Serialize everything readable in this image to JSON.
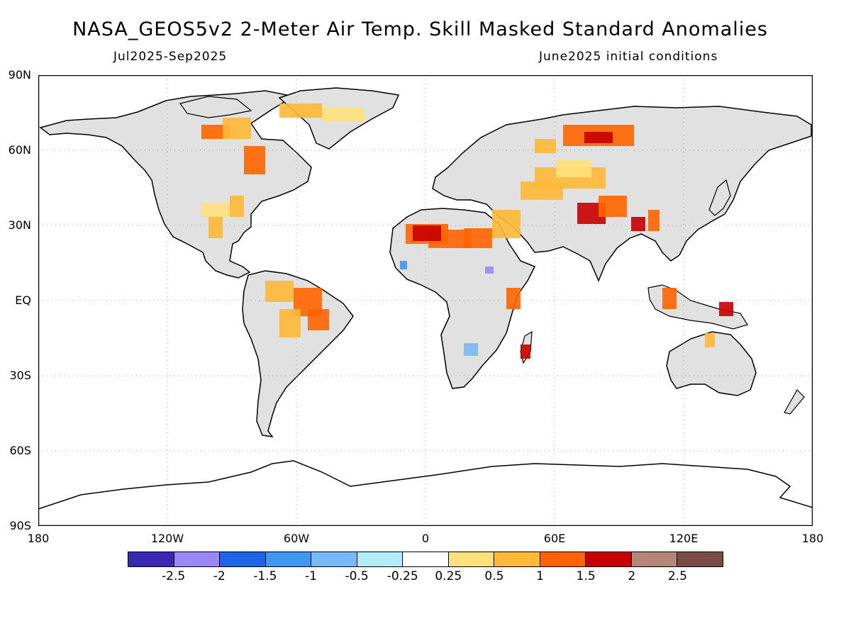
{
  "title": "NASA_GEOS5v2 2-Meter Air Temp. Skill Masked Standard Anomalies",
  "subtitle_left": "Jul2025-Sep2025",
  "subtitle_right": "June2025 initial conditions",
  "axes": {
    "y_labels": [
      "90N",
      "60N",
      "30N",
      "EQ",
      "30S",
      "60S",
      "90S"
    ],
    "x_labels": [
      "180",
      "120W",
      "60W",
      "0",
      "60E",
      "120E",
      "180"
    ]
  },
  "colorbar": {
    "colors": [
      "#3b28b0",
      "#9b87f5",
      "#1e64e8",
      "#3e98f0",
      "#78b9f5",
      "#b1edf8",
      "#ffffff",
      "#ffe17b",
      "#ffb937",
      "#ff6400",
      "#c80000",
      "#b48678",
      "#7a4d44"
    ],
    "labels": [
      "-2.5",
      "-2",
      "-1.5",
      "-1",
      "-0.5",
      "-0.25",
      "0.25",
      "0.5",
      "1",
      "1.5",
      "2",
      "2.5"
    ]
  },
  "map_colors": {
    "land": "#e1e1e1",
    "ocean": "#ffffff",
    "coast": "#000000",
    "grid": "#a0a0a0"
  }
}
